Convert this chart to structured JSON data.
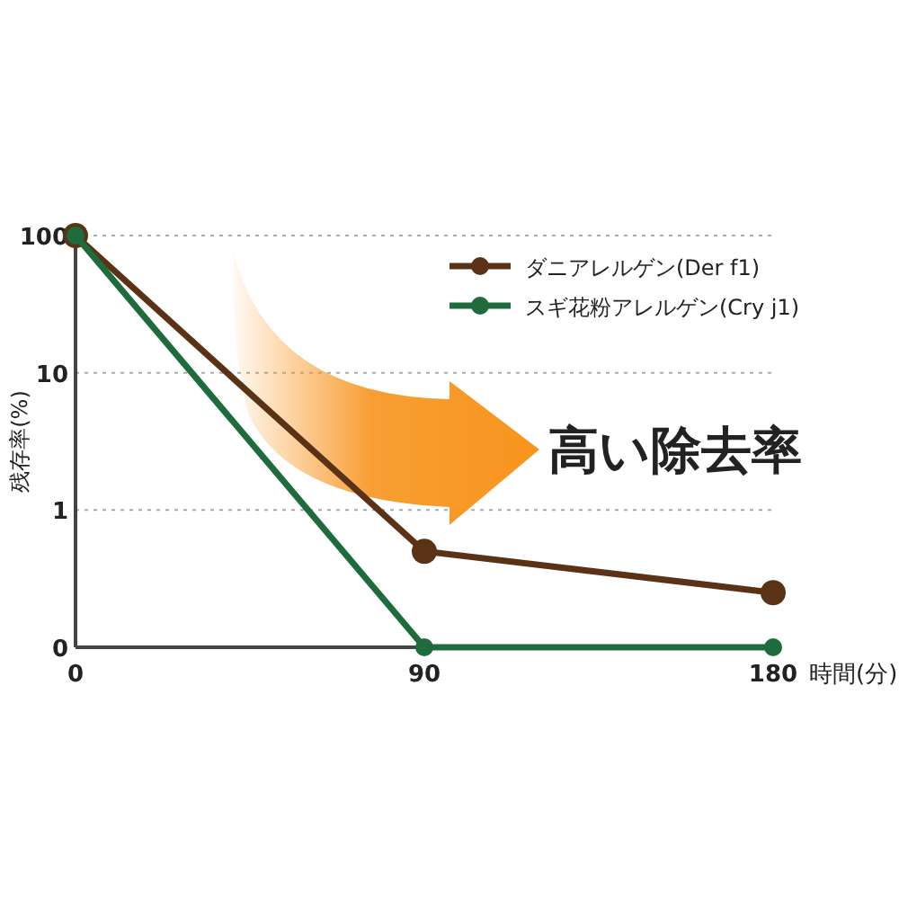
{
  "chart_data": {
    "type": "line",
    "xlabel": "時間(分)",
    "ylabel": "残存率(%)",
    "x": [
      0,
      90,
      180
    ],
    "xlim": [
      0,
      180
    ],
    "xticks": [
      0,
      90,
      180
    ],
    "ylim": [
      0.1,
      100
    ],
    "yticks": [
      {
        "value": 0.1,
        "label": "0"
      },
      1,
      10,
      100
    ],
    "log": "y",
    "grid": "y",
    "legend": "top right",
    "marker": "circle",
    "line_style": "solid",
    "annotations": [
      "高い除去率"
    ],
    "series": [
      {
        "name": "ダニアレルゲン(Der f1)",
        "color": "#5a3316",
        "values": [
          100,
          0.5,
          0.25
        ]
      },
      {
        "name": "スギ花粉アレルゲン(Cry j1)",
        "color": "#1e6b3c",
        "values": [
          100,
          0.1,
          0.1
        ]
      }
    ]
  }
}
